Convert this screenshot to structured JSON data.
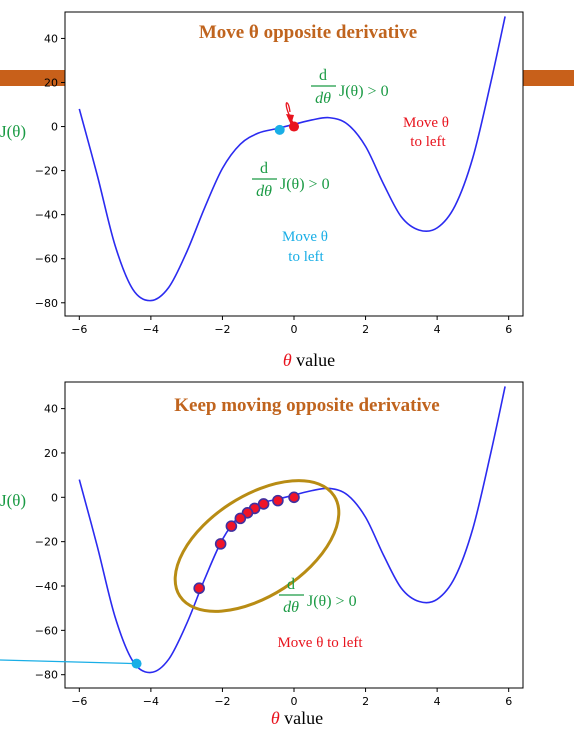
{
  "colors": {
    "curve": "#2b2bf0",
    "title": "#c0641e",
    "green": "#1a9a44",
    "red": "#e8141e",
    "cyan": "#19aee6",
    "ellipse": "#b88c14",
    "band": "#c8601a",
    "dot_fill": "#f01428",
    "dot_edge": "#4030a0"
  },
  "chart_data": [
    {
      "type": "line",
      "title": "Move θ opposite derivative",
      "xlabel_symbol": "θ",
      "xlabel_text": " value",
      "ylabel": "J(θ)",
      "xlim": [
        -6.4,
        6.4
      ],
      "ylim": [
        -86,
        52
      ],
      "xticks": [
        -6,
        -4,
        -2,
        0,
        2,
        4,
        6
      ],
      "yticks": [
        40,
        20,
        0,
        -20,
        -40,
        -60,
        -80
      ],
      "xticklabels": [
        "−6",
        "−4",
        "−2",
        "0",
        "2",
        "4",
        "6"
      ],
      "yticklabels": [
        "40",
        "20",
        "0",
        "−20",
        "−40",
        "−60",
        "−80"
      ],
      "curve": {
        "x": [
          -6,
          -5.5,
          -5,
          -4.5,
          -4,
          -3.5,
          -3,
          -2.5,
          -2,
          -1.5,
          -1,
          -0.5,
          0,
          0.5,
          1,
          1.5,
          2,
          2.5,
          3,
          3.5,
          4,
          4.5,
          5,
          5.5,
          5.9
        ],
        "y": [
          8,
          -22,
          -54,
          -74,
          -79,
          -73,
          -57,
          -37,
          -19,
          -8,
          -3,
          -1,
          1,
          3,
          4,
          1,
          -9,
          -26,
          -41,
          -47,
          -46,
          -36,
          -14,
          20,
          50
        ]
      },
      "points": [
        {
          "x": 0,
          "y": 0,
          "color": "red"
        },
        {
          "x": -0.4,
          "y": -1.5,
          "color": "cyan"
        }
      ],
      "annotations": {
        "deriv_top": {
          "num": "d",
          "den": "dθ",
          "expr": "J(θ) > 0"
        },
        "deriv_mid": {
          "num": "d",
          "den": "dθ",
          "expr": "J(θ) > 0"
        },
        "move_red": [
          "Move θ",
          "to left"
        ],
        "move_cyan": [
          "Move θ",
          "to left"
        ]
      }
    },
    {
      "type": "line",
      "title": "Keep moving opposite derivative",
      "xlabel_symbol": "θ",
      "xlabel_text": " value",
      "ylabel": "J(θ)",
      "xlim": [
        -6.4,
        6.4
      ],
      "ylim": [
        -86,
        52
      ],
      "xticks": [
        -6,
        -4,
        -2,
        0,
        2,
        4,
        6
      ],
      "yticks": [
        40,
        20,
        0,
        -20,
        -40,
        -60,
        -80
      ],
      "xticklabels": [
        "−6",
        "−4",
        "−2",
        "0",
        "2",
        "4",
        "6"
      ],
      "yticklabels": [
        "40",
        "20",
        "0",
        "−20",
        "−40",
        "−60",
        "−80"
      ],
      "curve": {
        "x": [
          -6,
          -5.5,
          -5,
          -4.5,
          -4,
          -3.5,
          -3,
          -2.5,
          -2,
          -1.5,
          -1,
          -0.5,
          0,
          0.5,
          1,
          1.5,
          2,
          2.5,
          3,
          3.5,
          4,
          4.5,
          5,
          5.5,
          5.9
        ],
        "y": [
          8,
          -22,
          -54,
          -74,
          -79,
          -73,
          -57,
          -37,
          -19,
          -8,
          -3,
          -1,
          1,
          3,
          4,
          1,
          -9,
          -26,
          -41,
          -47,
          -46,
          -36,
          -14,
          20,
          50
        ]
      },
      "points": [
        {
          "x": 0,
          "y": 0
        },
        {
          "x": -0.45,
          "y": -1.5
        },
        {
          "x": -0.85,
          "y": -3
        },
        {
          "x": -1.1,
          "y": -5
        },
        {
          "x": -1.3,
          "y": -7
        },
        {
          "x": -1.5,
          "y": -9.5
        },
        {
          "x": -1.75,
          "y": -13
        },
        {
          "x": -2.05,
          "y": -21
        },
        {
          "x": -2.65,
          "y": -41
        }
      ],
      "end_point": {
        "x": -4.4,
        "y": -75
      },
      "annotations": {
        "deriv": {
          "num": "d",
          "den": "dθ",
          "expr": "J(θ) > 0"
        },
        "move": "Move θ to left"
      }
    }
  ]
}
